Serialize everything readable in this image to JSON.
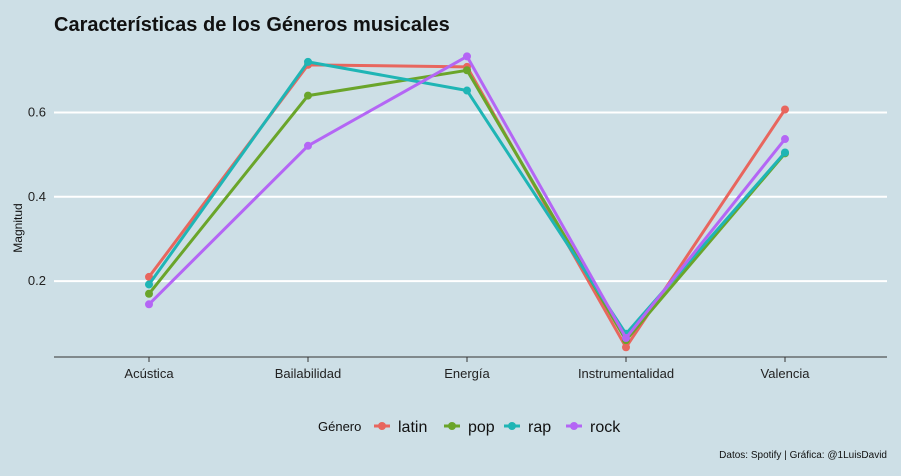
{
  "chart_data": {
    "type": "line",
    "title": "Características de los Géneros musicales",
    "ylabel": "Magnitud",
    "xlabel": "",
    "categories": [
      "Acústica",
      "Bailabilidad",
      "Energía",
      "Instrumentalidad",
      "Valencia"
    ],
    "y_ticks": [
      0.2,
      0.4,
      0.6
    ],
    "y_tick_labels": [
      "0.2",
      "0.4",
      "0.6"
    ],
    "ylim": [
      0.02,
      0.76
    ],
    "grid": "horizontal",
    "legend_title": "Género",
    "legend_position": "bottom",
    "series": [
      {
        "name": "latin",
        "color": "#e8665e",
        "values": [
          0.21,
          0.713,
          0.708,
          0.043,
          0.607
        ]
      },
      {
        "name": "pop",
        "color": "#6aa52a",
        "values": [
          0.17,
          0.64,
          0.7,
          0.06,
          0.503
        ]
      },
      {
        "name": "rap",
        "color": "#1fb5b5",
        "values": [
          0.192,
          0.72,
          0.652,
          0.075,
          0.505
        ]
      },
      {
        "name": "rock",
        "color": "#b466f5",
        "values": [
          0.145,
          0.521,
          0.733,
          0.065,
          0.537
        ]
      }
    ],
    "caption": "Datos: Spotify | Gráfica: @1LuisDavid"
  }
}
